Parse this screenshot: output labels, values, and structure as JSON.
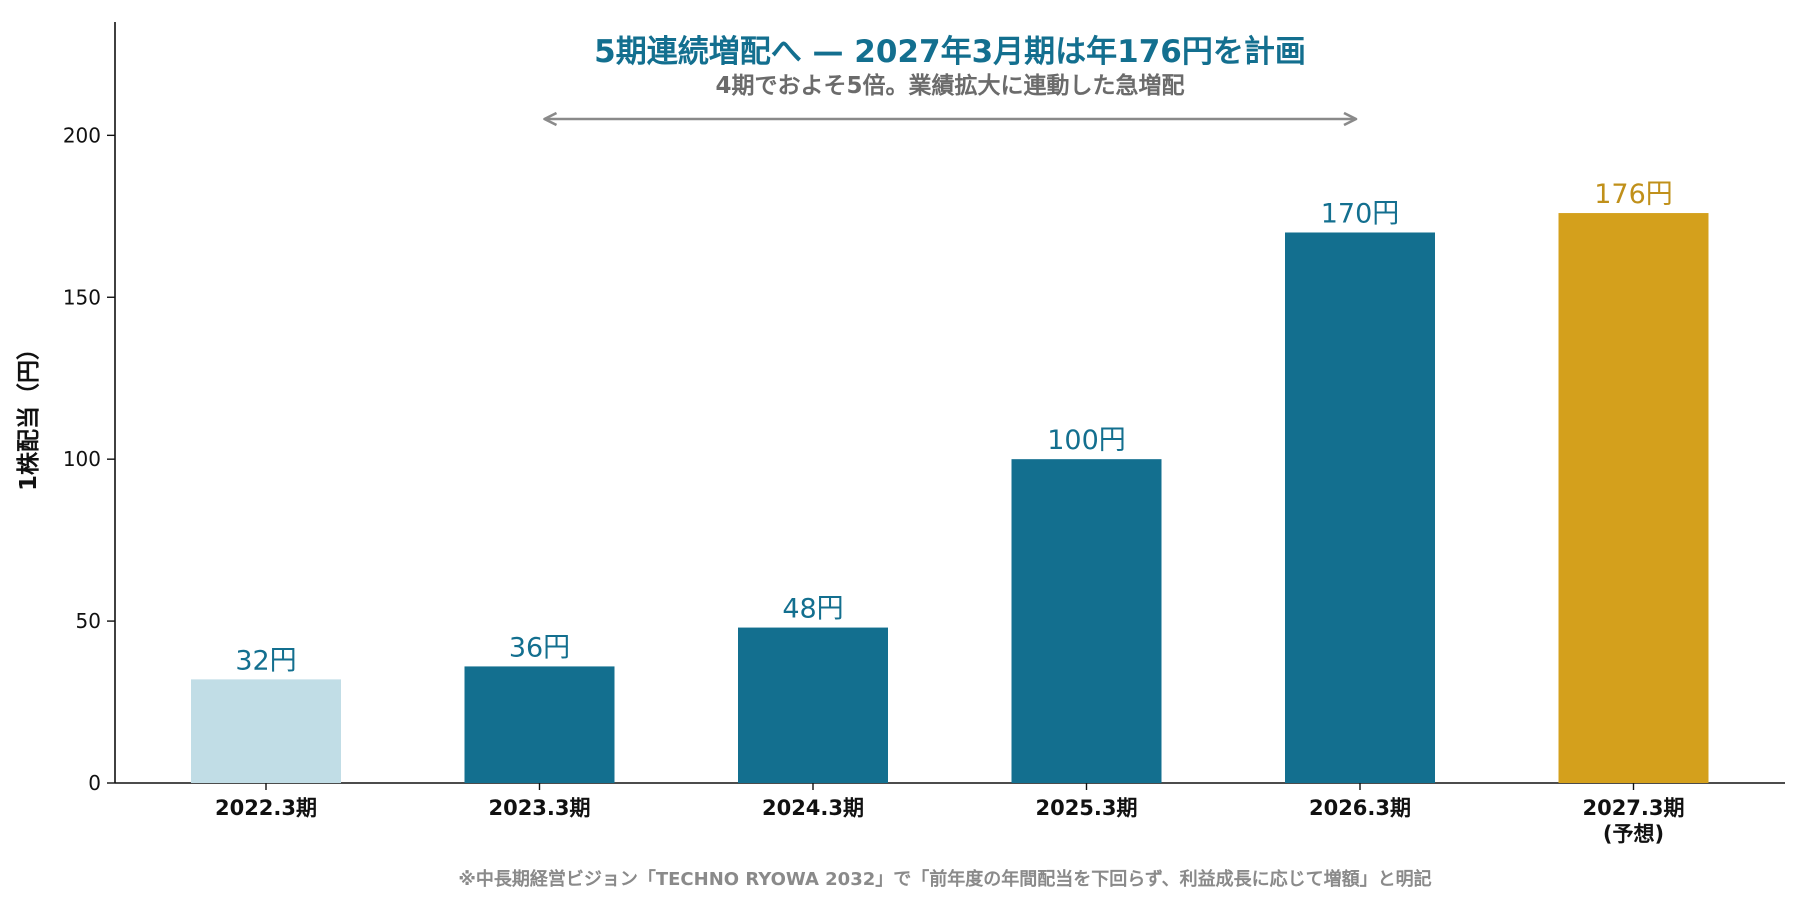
{
  "chart_data": {
    "type": "bar",
    "title": "5期連続増配へ — 2027年3月期は年176円を計画",
    "subtitle": "4期でおよそ5倍。業績拡大に連動した急増配",
    "ylabel": "1株配当（円）",
    "xlabel": "",
    "ylim": [
      0,
      235
    ],
    "yticks": [
      0,
      50,
      100,
      150,
      200
    ],
    "grid": false,
    "categories": [
      {
        "label": "2022.3期",
        "sublabel": ""
      },
      {
        "label": "2023.3期",
        "sublabel": ""
      },
      {
        "label": "2024.3期",
        "sublabel": ""
      },
      {
        "label": "2025.3期",
        "sublabel": ""
      },
      {
        "label": "2026.3期",
        "sublabel": ""
      },
      {
        "label": "2027.3期",
        "sublabel": "(予想)"
      }
    ],
    "values": [
      32,
      36,
      48,
      100,
      170,
      176
    ],
    "value_labels": [
      "32円",
      "36円",
      "48円",
      "100円",
      "170円",
      "176円"
    ],
    "bar_colors": [
      "#c1dde6",
      "#136f8f",
      "#136f8f",
      "#136f8f",
      "#136f8f",
      "#d4a01c"
    ],
    "label_colors": [
      "#136f8f",
      "#136f8f",
      "#136f8f",
      "#136f8f",
      "#136f8f",
      "#c0901a"
    ],
    "annotation": {
      "type": "double-arrow",
      "from_category": "2023.3期",
      "to_category": "2026.3期",
      "color": "#8a8a8a"
    },
    "footnote": "※中長期経営ビジョン「TECHNO RYOWA 2032」で「前年度の年間配当を下回らず、利益成長に応じて増額」と明記"
  },
  "colors": {
    "accent": "#136f8f",
    "light": "#c1dde6",
    "forecast": "#d4a01c",
    "muted": "#8a8a8a"
  }
}
